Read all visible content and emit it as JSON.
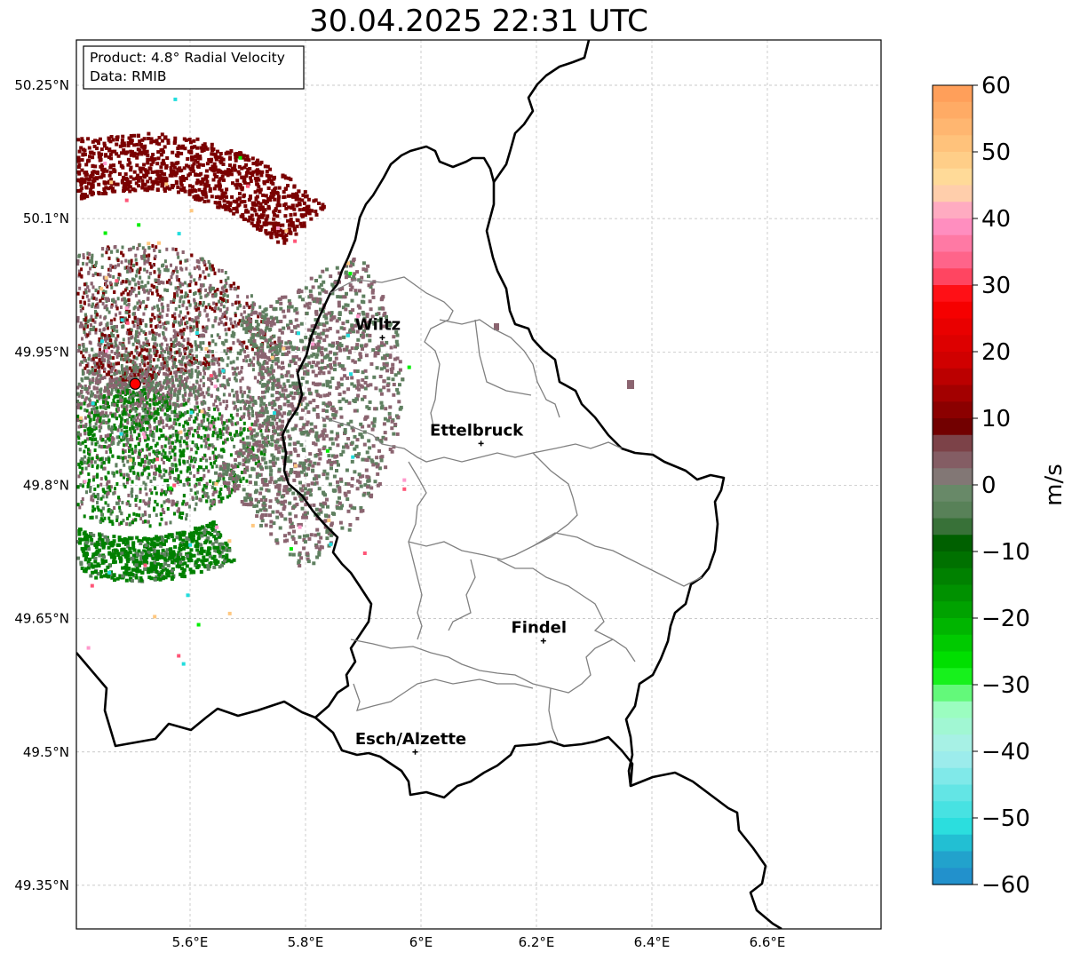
{
  "title": "30.04.2025 22:31 UTC",
  "info_box": {
    "product": "Product: 4.8° Radial Velocity",
    "data": "Data: RMIB"
  },
  "map": {
    "lon_range": [
      5.4,
      6.8
    ],
    "lat_range": [
      49.317,
      49.983
    ],
    "lat_ticks": [
      {
        "value": 50.25,
        "label": "50.25°N"
      },
      {
        "value": 50.1,
        "label": "50.1°N"
      },
      {
        "value": 49.95,
        "label": "49.95°N"
      },
      {
        "value": 49.8,
        "label": "49.8°N"
      },
      {
        "value": 49.65,
        "label": "49.65°N"
      },
      {
        "value": 49.5,
        "label": "49.5°N"
      },
      {
        "value": 49.35,
        "label": "49.35°N"
      }
    ],
    "lon_ticks": [
      {
        "value": 5.6,
        "label": "5.6°E"
      },
      {
        "value": 5.8,
        "label": "5.8°E"
      },
      {
        "value": 6.0,
        "label": "6°E"
      },
      {
        "value": 6.2,
        "label": "6.2°E"
      },
      {
        "value": 6.4,
        "label": "6.4°E"
      },
      {
        "value": 6.6,
        "label": "6.6°E"
      }
    ],
    "gridlines": true,
    "radar_site": {
      "lon": 5.505,
      "lat": 49.914,
      "color": "#ff0000"
    },
    "cities": [
      {
        "name": "Wiltz",
        "lon": 5.933,
        "lat": 49.966
      },
      {
        "name": "Ettelbruck",
        "lon": 6.104,
        "lat": 49.847
      },
      {
        "name": "Findel",
        "lon": 6.212,
        "lat": 49.625
      },
      {
        "name": "Esch/Alzette",
        "lon": 5.99,
        "lat": 49.5
      }
    ]
  },
  "colorbar": {
    "label": "m/s",
    "min": -60,
    "max": 60,
    "ticks": [
      {
        "value": 60,
        "label": "60"
      },
      {
        "value": 50,
        "label": "50"
      },
      {
        "value": 40,
        "label": "40"
      },
      {
        "value": 30,
        "label": "30"
      },
      {
        "value": 20,
        "label": "20"
      },
      {
        "value": 10,
        "label": "10"
      },
      {
        "value": 0,
        "label": "0"
      },
      {
        "value": -10,
        "label": "−10"
      },
      {
        "value": -20,
        "label": "−20"
      },
      {
        "value": -30,
        "label": "−30"
      },
      {
        "value": -40,
        "label": "−40"
      },
      {
        "value": -50,
        "label": "−50"
      },
      {
        "value": -60,
        "label": "−60"
      }
    ],
    "stops": [
      {
        "v": 60,
        "c": "#ff9955"
      },
      {
        "v": 50,
        "c": "#ffc880"
      },
      {
        "v": 45,
        "c": "#ffe0a0"
      },
      {
        "v": 40,
        "c": "#ff99cc"
      },
      {
        "v": 32,
        "c": "#ff5577"
      },
      {
        "v": 28,
        "c": "#ff0000"
      },
      {
        "v": 18,
        "c": "#cc0000"
      },
      {
        "v": 8,
        "c": "#6b0000"
      },
      {
        "v": 7,
        "c": "#7a3a40"
      },
      {
        "v": 2,
        "c": "#8a7078"
      },
      {
        "v": -1,
        "c": "#6a8a6a"
      },
      {
        "v": -6,
        "c": "#4a7a4a"
      },
      {
        "v": -7,
        "c": "#005500"
      },
      {
        "v": -20,
        "c": "#00aa00"
      },
      {
        "v": -28,
        "c": "#00ee00"
      },
      {
        "v": -33,
        "c": "#99ffbb"
      },
      {
        "v": -40,
        "c": "#aaeeee"
      },
      {
        "v": -52,
        "c": "#22dddd"
      },
      {
        "v": -55,
        "c": "#22aacc"
      },
      {
        "v": -60,
        "c": "#2288cc"
      }
    ]
  },
  "colors": {
    "far_reflection": "#7a0000",
    "near_reflection": "#8b6470",
    "approach_strong": "#008000",
    "approach_weak": "#5f8060",
    "border": "#000000",
    "cantons": "#808080"
  }
}
